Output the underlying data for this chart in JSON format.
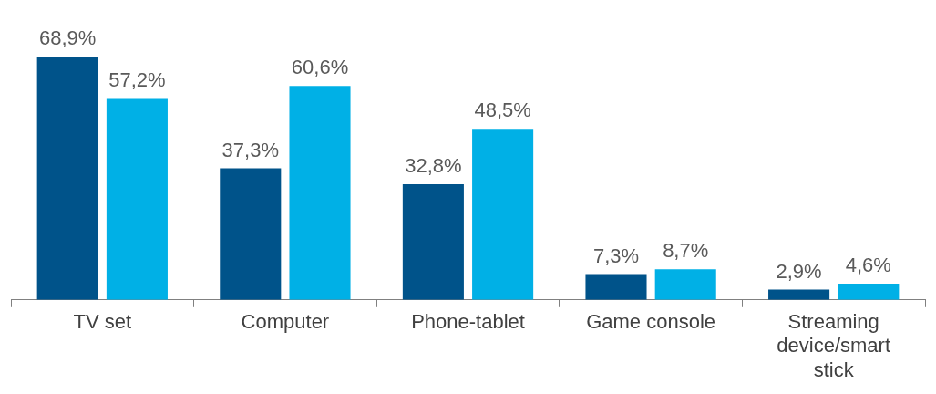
{
  "chart_data": {
    "type": "bar",
    "categories": [
      "TV set",
      "Computer",
      "Phone-tablet",
      "Game console",
      "Streaming device/smart stick"
    ],
    "series": [
      {
        "color": "#00538a",
        "values": [
          68.9,
          37.3,
          32.8,
          7.3,
          2.9
        ],
        "value_labels": [
          "68,9%",
          "37,3%",
          "32,8%",
          "7,3%",
          "2,9%"
        ]
      },
      {
        "color": "#00b0e6",
        "values": [
          57.2,
          60.6,
          48.5,
          8.7,
          4.6
        ],
        "value_labels": [
          "57,2%",
          "60,6%",
          "48,5%",
          "8,7%",
          "4,6%"
        ]
      }
    ],
    "grid": false,
    "legend": false
  }
}
